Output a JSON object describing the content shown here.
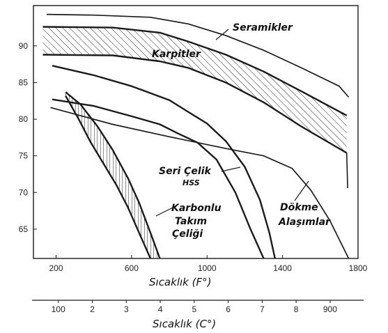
{
  "chart_data": {
    "type": "line",
    "x_primary": {
      "label": "Sıcaklık (F°)",
      "ticks": [
        200,
        600,
        1000,
        1400,
        1800
      ],
      "range": [
        80,
        1800
      ]
    },
    "x_secondary": {
      "label": "Sıcaklık (C°)",
      "tick_labels": [
        "100",
        "2",
        "3",
        "4",
        "5",
        "6",
        "7",
        "8",
        "900"
      ],
      "tick_values": [
        100,
        200,
        300,
        400,
        500,
        600,
        700,
        800,
        900
      ]
    },
    "y": {
      "ticks": [
        65,
        70,
        75,
        80,
        85,
        90
      ],
      "range": [
        61,
        95.5
      ]
    },
    "grid": false,
    "series": [
      {
        "name": "Seramikler",
        "kind": "line",
        "points": [
          [
            150,
            94.3
          ],
          [
            400,
            94.2
          ],
          [
            700,
            93.9
          ],
          [
            900,
            93.0
          ],
          [
            1100,
            91.4
          ],
          [
            1300,
            89.4
          ],
          [
            1500,
            87.0
          ],
          [
            1700,
            84.5
          ],
          [
            1750,
            83.0
          ]
        ]
      },
      {
        "name": "Karpitler",
        "kind": "band",
        "upper": [
          [
            130,
            92.6
          ],
          [
            500,
            92.5
          ],
          [
            750,
            91.8
          ],
          [
            900,
            90.6
          ],
          [
            1100,
            88.8
          ],
          [
            1300,
            86.5
          ],
          [
            1500,
            83.8
          ],
          [
            1740,
            80.5
          ]
        ],
        "lower": [
          [
            130,
            88.8
          ],
          [
            500,
            88.7
          ],
          [
            750,
            87.9
          ],
          [
            900,
            87.0
          ],
          [
            1100,
            85.0
          ],
          [
            1300,
            82.3
          ],
          [
            1500,
            79.0
          ],
          [
            1740,
            75.4
          ]
        ],
        "end_cap": [
          [
            1740,
            75.4
          ],
          [
            1745,
            70.6
          ]
        ]
      },
      {
        "name": "Seri Çelik HSS",
        "kind": "band",
        "upper": [
          [
            180,
            87.3
          ],
          [
            400,
            86.0
          ],
          [
            600,
            84.5
          ],
          [
            800,
            82.6
          ],
          [
            900,
            81.0
          ],
          [
            1000,
            79.4
          ],
          [
            1100,
            77.0
          ],
          [
            1200,
            73.5
          ],
          [
            1280,
            69.0
          ],
          [
            1330,
            64.5
          ],
          [
            1360,
            61.0
          ]
        ],
        "lower": [
          [
            180,
            82.7
          ],
          [
            400,
            81.8
          ],
          [
            600,
            80.4
          ],
          [
            750,
            79.3
          ],
          [
            850,
            78.0
          ],
          [
            950,
            76.8
          ],
          [
            1050,
            74.5
          ],
          [
            1150,
            70.0
          ],
          [
            1230,
            65.0
          ],
          [
            1300,
            61.0
          ]
        ]
      },
      {
        "name": "Karbonlu Takım Çeliği",
        "kind": "band",
        "upper": [
          [
            250,
            83.7
          ],
          [
            330,
            82.0
          ],
          [
            420,
            79.0
          ],
          [
            500,
            75.8
          ],
          [
            580,
            72.0
          ],
          [
            640,
            68.6
          ],
          [
            700,
            64.5
          ],
          [
            750,
            61.0
          ]
        ],
        "lower": [
          [
            250,
            83.2
          ],
          [
            320,
            80.0
          ],
          [
            380,
            77.0
          ],
          [
            450,
            74.0
          ],
          [
            520,
            71.0
          ],
          [
            580,
            68.0
          ],
          [
            640,
            64.5
          ],
          [
            700,
            61.0
          ]
        ]
      },
      {
        "name": "Dökme Alaşımlar",
        "kind": "line",
        "points": [
          [
            170,
            81.6
          ],
          [
            500,
            79.3
          ],
          [
            800,
            77.6
          ],
          [
            1100,
            76.0
          ],
          [
            1300,
            75.0
          ],
          [
            1450,
            73.3
          ],
          [
            1550,
            70.3
          ],
          [
            1650,
            66.2
          ],
          [
            1750,
            61.0
          ]
        ]
      }
    ],
    "annotations": [
      "Seramikler",
      "Karpitler",
      "Seri Çelik",
      "HSS",
      "Dökme",
      "Alaşımlar",
      "Karbonlu",
      "Takım",
      "Çeliği"
    ]
  },
  "labels": {
    "ann_seramikler": "Seramikler",
    "ann_karpitler": "Karpitler",
    "ann_seri": "Seri Çelik",
    "ann_hss": "HSS",
    "ann_dokme": "Dökme",
    "ann_alasim": "Alaşımlar",
    "ann_karbonlu": "Karbonlu",
    "ann_takim": "Takım",
    "ann_celigi": "Çeliği",
    "xlabel_f": "Sıcaklık (F°)",
    "xlabel_c": "Sıcaklık (C°)"
  },
  "colors": {
    "ink": "#1a1a1a",
    "paper": "#ffffff"
  }
}
